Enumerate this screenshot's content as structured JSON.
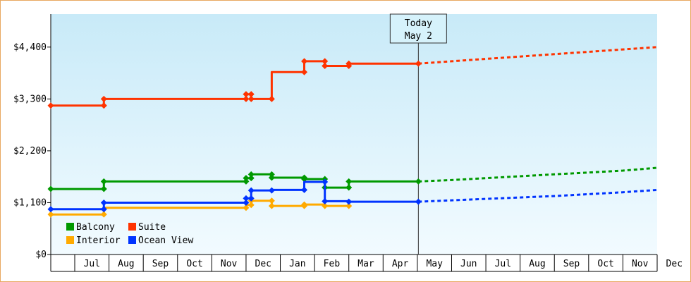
{
  "chart_data": {
    "type": "line",
    "y_ticks": [
      {
        "label": "$4,400",
        "value": 4400
      },
      {
        "label": "$3,300",
        "value": 3300
      },
      {
        "label": "$2,200",
        "value": 2200
      },
      {
        "label": "$1,100",
        "value": 1100
      },
      {
        "label": "$0",
        "value": 0
      }
    ],
    "ylim": [
      0,
      5100
    ],
    "x_domain": [
      5.3,
      23.0
    ],
    "x_labels": [
      {
        "label": "Jul",
        "value": 6.5
      },
      {
        "label": "Aug",
        "value": 7.5
      },
      {
        "label": "Sep",
        "value": 8.5
      },
      {
        "label": "Oct",
        "value": 9.5
      },
      {
        "label": "Nov",
        "value": 10.5
      },
      {
        "label": "Dec",
        "value": 11.5
      },
      {
        "label": "Jan",
        "value": 12.5
      },
      {
        "label": "Feb",
        "value": 13.5
      },
      {
        "label": "Mar",
        "value": 14.5
      },
      {
        "label": "Apr",
        "value": 15.5
      },
      {
        "label": "May",
        "value": 16.5
      },
      {
        "label": "Jun",
        "value": 17.5
      },
      {
        "label": "Jul",
        "value": 18.5
      },
      {
        "label": "Aug",
        "value": 19.5
      },
      {
        "label": "Sep",
        "value": 20.5
      },
      {
        "label": "Oct",
        "value": 21.5
      },
      {
        "label": "Nov",
        "value": 22.5
      },
      {
        "label": "Dec",
        "value": 23.5
      }
    ],
    "x_boundaries": [
      5.3,
      6.0,
      7.0,
      8.0,
      9.0,
      10.0,
      11.0,
      12.0,
      13.0,
      14.0,
      15.0,
      16.0,
      17.0,
      18.0,
      19.0,
      20.0,
      21.0,
      22.0,
      23.0
    ],
    "today": {
      "label_line1": "Today",
      "label_line2": "May 2",
      "x": 16.03
    },
    "series": [
      {
        "name": "Suite",
        "color": "#ff3300",
        "points": [
          [
            5.3,
            3160
          ],
          [
            6.85,
            3160
          ],
          [
            6.85,
            3300
          ],
          [
            11.0,
            3300
          ],
          [
            11.0,
            3400
          ],
          [
            11.15,
            3400
          ],
          [
            11.15,
            3300
          ],
          [
            11.75,
            3300
          ],
          [
            11.75,
            3870
          ],
          [
            12.7,
            3870
          ],
          [
            12.7,
            4100
          ],
          [
            13.3,
            4100
          ],
          [
            13.3,
            4000
          ],
          [
            14.0,
            4000
          ],
          [
            14.0,
            4050
          ],
          [
            16.03,
            4050
          ]
        ],
        "projection": [
          [
            16.03,
            4050
          ],
          [
            17.0,
            4100
          ],
          [
            18.0,
            4150
          ],
          [
            19.0,
            4200
          ],
          [
            20.0,
            4250
          ],
          [
            21.0,
            4300
          ],
          [
            22.0,
            4350
          ],
          [
            23.0,
            4400
          ]
        ]
      },
      {
        "name": "Balcony",
        "color": "#009900",
        "points": [
          [
            5.3,
            1390
          ],
          [
            6.85,
            1390
          ],
          [
            6.85,
            1550
          ],
          [
            11.0,
            1550
          ],
          [
            11.0,
            1620
          ],
          [
            11.15,
            1620
          ],
          [
            11.15,
            1700
          ],
          [
            11.75,
            1700
          ],
          [
            11.75,
            1630
          ],
          [
            12.7,
            1630
          ],
          [
            12.7,
            1600
          ],
          [
            13.3,
            1600
          ],
          [
            13.3,
            1420
          ],
          [
            14.0,
            1420
          ],
          [
            14.0,
            1550
          ],
          [
            16.03,
            1550
          ]
        ],
        "projection": [
          [
            16.03,
            1550
          ],
          [
            17.0,
            1580
          ],
          [
            18.0,
            1620
          ],
          [
            19.0,
            1660
          ],
          [
            20.0,
            1700
          ],
          [
            21.0,
            1740
          ],
          [
            22.0,
            1780
          ],
          [
            23.0,
            1840
          ]
        ]
      },
      {
        "name": "Interior",
        "color": "#ffaa00",
        "points": [
          [
            5.3,
            850
          ],
          [
            6.85,
            850
          ],
          [
            6.85,
            990
          ],
          [
            11.0,
            990
          ],
          [
            11.0,
            1050
          ],
          [
            11.15,
            1050
          ],
          [
            11.15,
            1140
          ],
          [
            11.75,
            1140
          ],
          [
            11.75,
            1030
          ],
          [
            12.7,
            1030
          ],
          [
            12.7,
            1060
          ],
          [
            13.3,
            1060
          ],
          [
            13.3,
            1030
          ],
          [
            14.0,
            1030
          ]
        ],
        "projection": []
      },
      {
        "name": "Ocean View",
        "color": "#0033ff",
        "points": [
          [
            5.3,
            960
          ],
          [
            6.85,
            960
          ],
          [
            6.85,
            1100
          ],
          [
            11.0,
            1100
          ],
          [
            11.0,
            1190
          ],
          [
            11.15,
            1190
          ],
          [
            11.15,
            1360
          ],
          [
            11.75,
            1360
          ],
          [
            11.75,
            1370
          ],
          [
            12.7,
            1370
          ],
          [
            12.7,
            1540
          ],
          [
            13.3,
            1540
          ],
          [
            13.3,
            1130
          ],
          [
            14.0,
            1130
          ],
          [
            14.0,
            1120
          ],
          [
            16.03,
            1120
          ]
        ],
        "projection": [
          [
            16.03,
            1120
          ],
          [
            17.0,
            1150
          ],
          [
            18.0,
            1180
          ],
          [
            19.0,
            1210
          ],
          [
            20.0,
            1240
          ],
          [
            21.0,
            1280
          ],
          [
            22.0,
            1320
          ],
          [
            23.0,
            1370
          ]
        ]
      }
    ],
    "markers": {
      "Suite": [
        [
          5.3,
          3160
        ],
        [
          6.85,
          3160
        ],
        [
          6.85,
          3300
        ],
        [
          11.0,
          3300
        ],
        [
          11.0,
          3400
        ],
        [
          11.15,
          3400
        ],
        [
          11.15,
          3300
        ],
        [
          11.75,
          3300
        ],
        [
          12.7,
          3870
        ],
        [
          12.7,
          4100
        ],
        [
          13.3,
          4100
        ],
        [
          13.3,
          4000
        ],
        [
          14.0,
          4000
        ],
        [
          14.0,
          4050
        ],
        [
          16.03,
          4050
        ]
      ],
      "Balcony": [
        [
          5.3,
          1390
        ],
        [
          6.85,
          1390
        ],
        [
          6.85,
          1550
        ],
        [
          11.0,
          1550
        ],
        [
          11.0,
          1620
        ],
        [
          11.15,
          1620
        ],
        [
          11.15,
          1700
        ],
        [
          11.75,
          1700
        ],
        [
          11.75,
          1630
        ],
        [
          12.7,
          1630
        ],
        [
          12.7,
          1600
        ],
        [
          13.3,
          1600
        ],
        [
          13.3,
          1420
        ],
        [
          14.0,
          1420
        ],
        [
          14.0,
          1550
        ],
        [
          16.03,
          1550
        ]
      ],
      "Interior": [
        [
          5.3,
          850
        ],
        [
          6.85,
          850
        ],
        [
          11.0,
          990
        ],
        [
          11.15,
          1050
        ],
        [
          11.15,
          1140
        ],
        [
          11.75,
          1140
        ],
        [
          11.75,
          1030
        ],
        [
          12.7,
          1030
        ],
        [
          12.7,
          1060
        ],
        [
          13.3,
          1030
        ],
        [
          14.0,
          1030
        ]
      ],
      "Ocean View": [
        [
          5.3,
          960
        ],
        [
          6.85,
          960
        ],
        [
          6.85,
          1100
        ],
        [
          11.0,
          1100
        ],
        [
          11.0,
          1190
        ],
        [
          11.15,
          1190
        ],
        [
          11.15,
          1360
        ],
        [
          11.75,
          1360
        ],
        [
          12.7,
          1370
        ],
        [
          13.3,
          1540
        ],
        [
          13.3,
          1130
        ],
        [
          14.0,
          1120
        ],
        [
          16.03,
          1120
        ]
      ]
    },
    "legend": [
      {
        "name": "Balcony",
        "color": "#009900"
      },
      {
        "name": "Suite",
        "color": "#ff3300"
      },
      {
        "name": "Interior",
        "color": "#ffaa00"
      },
      {
        "name": "Ocean View",
        "color": "#0033ff"
      }
    ],
    "legend_position": "bottom-left",
    "background_gradient": [
      "#c8eaf8",
      "#f2fbff"
    ]
  }
}
